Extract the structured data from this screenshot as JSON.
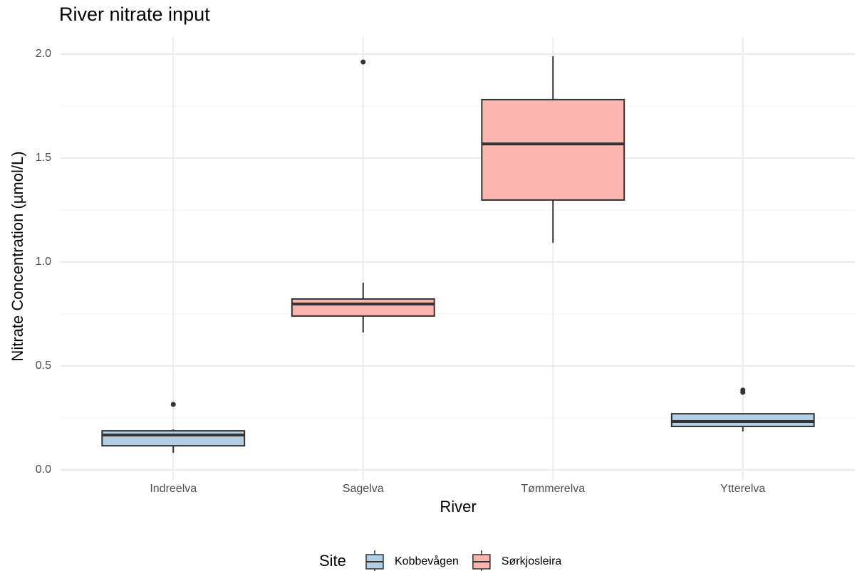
{
  "chart_data": {
    "type": "boxplot",
    "title": "River nitrate input",
    "x_label": "River",
    "y_label": "Nitrate Concentration (µmol/L)",
    "categories": [
      "Indreelva",
      "Sagelva",
      "Tømmerelva",
      "Ytterelva"
    ],
    "ylim": [
      -0.05,
      2.08
    ],
    "yticks": [
      {
        "value": 0,
        "label": "0.0"
      },
      0.5,
      {
        "value": 1,
        "label": "1.0"
      },
      1.5,
      {
        "value": 2,
        "label": "2.0"
      }
    ],
    "minor_yticks": [
      0.25,
      0.75,
      1.25,
      1.75
    ],
    "grid": true,
    "legend_title": "Site",
    "legend_position": "bottom",
    "series": [
      {
        "name": "Kobbevågen",
        "color": "#b3cde3",
        "low": [
          0.082,
          null,
          null,
          0.185
        ],
        "q1": [
          0.116,
          null,
          null,
          0.209
        ],
        "median": [
          0.168,
          null,
          null,
          0.233
        ],
        "q3": [
          0.188,
          null,
          null,
          0.27
        ],
        "high": [
          0.195,
          null,
          null,
          0.27
        ],
        "outliers": [
          [
            0.315
          ],
          null,
          null,
          [
            0.384,
            0.373
          ]
        ]
      },
      {
        "name": "Sørkjosleira",
        "color": "#fbb4ae",
        "low": [
          null,
          0.661,
          1.092,
          null
        ],
        "q1": [
          null,
          0.74,
          1.298,
          null
        ],
        "median": [
          null,
          0.798,
          1.568,
          null
        ],
        "q3": [
          null,
          0.822,
          1.781,
          null
        ],
        "high": [
          null,
          0.9,
          1.99,
          null
        ],
        "outliers": [
          null,
          [
            1.962
          ],
          [],
          null
        ]
      }
    ]
  }
}
